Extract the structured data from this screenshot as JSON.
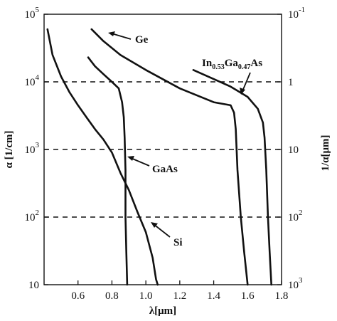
{
  "chart_data": {
    "type": "line",
    "xlabel": "λ[μm]",
    "ylabel_left": "α [1/cm]",
    "ylabel_right": "1/α[μm]",
    "xlim": [
      0.4,
      1.8
    ],
    "ylim": [
      10,
      100000
    ],
    "y_scale": "log",
    "grid": "dashed at 10^2, 10^3, 10^4",
    "legend": "inline labels with arrows",
    "x_ticks": [
      "0.6",
      "0.8",
      "1.0",
      "1.2",
      "1.4",
      "1.6",
      "1.8"
    ],
    "y_ticks_left": [
      {
        "value": 100000,
        "base": "10",
        "exp": "5"
      },
      {
        "value": 10000,
        "base": "10",
        "exp": "4"
      },
      {
        "value": 1000,
        "base": "10",
        "exp": "3"
      },
      {
        "value": 100,
        "base": "10",
        "exp": "2"
      },
      {
        "value": 10,
        "base": "10",
        "exp": ""
      }
    ],
    "y_ticks_right": [
      {
        "value": 100000,
        "base": "10",
        "exp": "-1"
      },
      {
        "value": 10000,
        "base": "1",
        "exp": ""
      },
      {
        "value": 1000,
        "base": "10",
        "exp": ""
      },
      {
        "value": 100,
        "base": "10",
        "exp": "2"
      },
      {
        "value": 10,
        "base": "10",
        "exp": "3"
      }
    ],
    "gridlines_y": [
      10000,
      1000,
      100
    ],
    "series": [
      {
        "name": "Ge",
        "x": [
          0.68,
          0.75,
          0.85,
          1.0,
          1.2,
          1.4,
          1.5,
          1.52,
          1.53,
          1.54,
          1.56,
          1.58,
          1.6
        ],
        "y": [
          60000,
          40000,
          25000,
          15000,
          8000,
          5000,
          4500,
          3500,
          2000,
          500,
          100,
          30,
          10
        ]
      },
      {
        "name": "GaAs",
        "x": [
          0.66,
          0.7,
          0.75,
          0.8,
          0.84,
          0.86,
          0.87,
          0.875,
          0.88,
          0.88,
          0.885,
          0.89
        ],
        "y": [
          23000,
          17000,
          13000,
          10000,
          8000,
          5000,
          3000,
          1500,
          500,
          100,
          30,
          10
        ]
      },
      {
        "name": "Si",
        "x": [
          0.42,
          0.45,
          0.5,
          0.55,
          0.6,
          0.65,
          0.7,
          0.75,
          0.8,
          0.85,
          0.9,
          0.95,
          1.0,
          1.04,
          1.06,
          1.07
        ],
        "y": [
          60000,
          25000,
          12000,
          7000,
          4500,
          3000,
          2000,
          1400,
          900,
          450,
          250,
          120,
          60,
          25,
          12,
          10
        ]
      },
      {
        "name": "In0.53Ga0.47As",
        "x": [
          1.28,
          1.4,
          1.5,
          1.6,
          1.66,
          1.69,
          1.7,
          1.71,
          1.72,
          1.73,
          1.74
        ],
        "y": [
          15000,
          11000,
          8500,
          6000,
          4000,
          2500,
          1500,
          500,
          100,
          30,
          10
        ]
      }
    ],
    "annotations": [
      {
        "series": "Ge",
        "text": "Ge"
      },
      {
        "series": "GaAs",
        "text": "GaAs"
      },
      {
        "series": "Si",
        "text": "Si"
      },
      {
        "series": "In0.53Ga0.47As",
        "parts": [
          "In",
          "0.53",
          "Ga",
          "0.47",
          "As"
        ]
      }
    ]
  }
}
